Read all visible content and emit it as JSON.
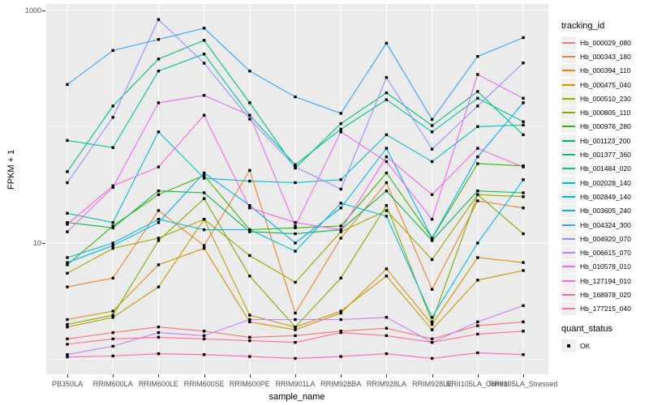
{
  "y_axis": {
    "title": "FPKM + 1",
    "ticks": [
      "1000",
      "10"
    ]
  },
  "x_axis": {
    "title": "sample_name"
  },
  "legend": {
    "tracking_title": "tracking_id",
    "quant_title": "quant_status",
    "quant_ok_label": "OK"
  },
  "colors": {
    "panel_bg": "#EBEBEB",
    "grid": "#FFFFFF",
    "point": "#000000",
    "tick_text": "#4D4D4D"
  },
  "chart_data": {
    "type": "line",
    "title": "",
    "xlabel": "sample_name",
    "ylabel": "FPKM + 1",
    "y_scale": "log10",
    "ylim": [
      1,
      1000
    ],
    "y_tick_labels_shown": [
      1000,
      10
    ],
    "grid": true,
    "legend_position": "right",
    "point_shape": "filled-square",
    "point_color": "#000000",
    "quant_status_all_points": "OK",
    "categories": [
      "PB350LA",
      "RRIM600LA",
      "RRIM600LE",
      "RRIM600SE",
      "RRIM600PE",
      "RRIM901LA",
      "RRIM928BA",
      "RRIM928LA",
      "RRIM928LE",
      "RRII105LA_Control",
      "RRII105LA_Stressed"
    ],
    "series": [
      {
        "name": "Hb_000029_080",
        "color": "#F8766D",
        "values": [
          1.5,
          1.7,
          1.9,
          1.75,
          1.55,
          1.6,
          1.75,
          1.85,
          1.5,
          1.95,
          2.1
        ]
      },
      {
        "name": "Hb_000343_180",
        "color": "#EA8331",
        "values": [
          4.2,
          5.0,
          19,
          9.5,
          42,
          2.5,
          11,
          33,
          4.0,
          23,
          20
        ]
      },
      {
        "name": "Hb_000394_110",
        "color": "#D89000",
        "values": [
          2.2,
          2.6,
          6.5,
          9.0,
          2.1,
          1.8,
          2.5,
          6.0,
          2.0,
          7.5,
          6.8
        ]
      },
      {
        "name": "Hb_000475_040",
        "color": "#C09B00",
        "values": [
          1.9,
          2.3,
          4.2,
          16,
          2.4,
          1.9,
          2.6,
          5.2,
          1.8,
          4.8,
          5.8
        ]
      },
      {
        "name": "Hb_000510_230",
        "color": "#A3A500",
        "values": [
          5.5,
          9.0,
          11,
          16,
          7.8,
          4.6,
          12.5,
          19,
          7.2,
          26,
          25
        ]
      },
      {
        "name": "Hb_000805_110",
        "color": "#7CAE00",
        "values": [
          2.0,
          2.4,
          10.5,
          24,
          5.2,
          1.9,
          5.0,
          21,
          2.1,
          26,
          12
        ]
      },
      {
        "name": "Hb_000976_280",
        "color": "#39B600",
        "values": [
          6.5,
          14,
          26,
          38,
          13,
          13.5,
          14,
          40,
          11,
          48,
          46
        ]
      },
      {
        "name": "Hb_001123_200",
        "color": "#00BB4E",
        "values": [
          15,
          13.5,
          28,
          27,
          12.5,
          12,
          13,
          28,
          10.5,
          28,
          27
        ]
      },
      {
        "name": "Hb_001377_360",
        "color": "#00BF7D",
        "values": [
          41,
          150,
          380,
          550,
          160,
          44,
          106,
          195,
          102,
          200,
          85
        ]
      },
      {
        "name": "Hb_001484_020",
        "color": "#00C1A3",
        "values": [
          76,
          66,
          300,
          420,
          125,
          47,
          95,
          170,
          90,
          175,
          110
        ]
      },
      {
        "name": "Hb_002028_140",
        "color": "#00BFC4",
        "values": [
          18,
          15,
          90,
          36,
          34,
          33,
          35,
          85,
          50,
          100,
          103
        ]
      },
      {
        "name": "Hb_002849_140",
        "color": "#00BAE0",
        "values": [
          7.5,
          10,
          16,
          13,
          13,
          8.5,
          22,
          17,
          2.3,
          10,
          35
        ]
      },
      {
        "name": "Hb_003605_240",
        "color": "#00B0F6",
        "values": [
          6.8,
          9.5,
          15,
          40,
          21,
          10,
          20,
          65,
          11,
          55,
          160
        ]
      },
      {
        "name": "Hb_004324_300",
        "color": "#35A2FF",
        "values": [
          230,
          450,
          560,
          700,
          300,
          180,
          130,
          520,
          115,
          400,
          580
        ]
      },
      {
        "name": "Hb_004920_070",
        "color": "#9590FF",
        "values": [
          33,
          120,
          830,
          350,
          116,
          45,
          29,
          264,
          64,
          150,
          352
        ]
      },
      {
        "name": "Hb_006615_070",
        "color": "#C77CFF",
        "values": [
          1.1,
          1.3,
          1.7,
          1.6,
          2.2,
          2.2,
          2.2,
          2.3,
          1.4,
          2.1,
          2.9
        ]
      },
      {
        "name": "Hb_010578_010",
        "color": "#E76BF3",
        "values": [
          12.5,
          30,
          160,
          185,
          125,
          14,
          90,
          50,
          16,
          280,
          175
        ]
      },
      {
        "name": "Hb_127194_010",
        "color": "#FA62DB",
        "values": [
          14.5,
          31,
          45,
          125,
          20,
          15,
          13,
          55,
          26,
          65,
          45
        ]
      },
      {
        "name": "Hb_168978_020",
        "color": "#FF62BC",
        "values": [
          1.05,
          1.07,
          1.12,
          1.1,
          1.06,
          1.02,
          1.06,
          1.12,
          1.02,
          1.14,
          1.1
        ]
      },
      {
        "name": "Hb_177215_040",
        "color": "#FF6A98",
        "values": [
          1.35,
          1.5,
          1.55,
          1.5,
          1.45,
          1.4,
          1.7,
          1.6,
          1.4,
          1.65,
          1.75
        ]
      }
    ]
  }
}
